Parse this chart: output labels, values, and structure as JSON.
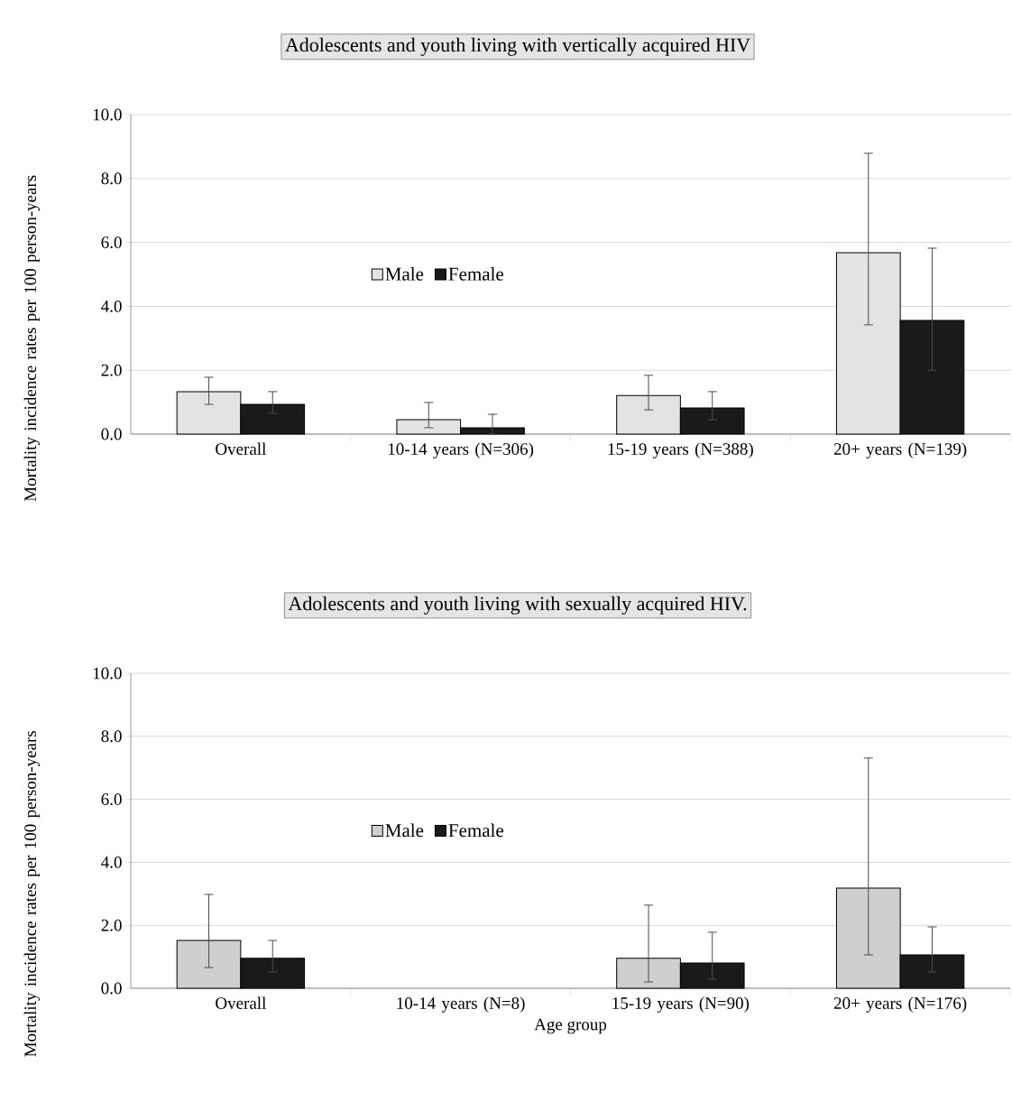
{
  "chart_data": [
    {
      "type": "bar",
      "title": "Adolescents and youth living with vertically acquired HIV",
      "ylabel": "Mortality incidence rates per 100 person-years",
      "categories": [
        "Overall",
        "10-14 years (N=306)",
        "15-19 years (N=388)",
        "20+ years (N=139)"
      ],
      "series": [
        {
          "name": "Male",
          "color": "#e3e3e3",
          "values": [
            1.33,
            0.45,
            1.21,
            5.68
          ],
          "errors": [
            [
              0.93,
              1.78
            ],
            [
              0.2,
              0.99
            ],
            [
              0.76,
              1.84
            ],
            [
              3.42,
              8.79
            ]
          ]
        },
        {
          "name": "Female",
          "color": "#1a1a1a",
          "values": [
            0.93,
            0.2,
            0.82,
            3.56
          ],
          "errors": [
            [
              0.65,
              1.33
            ],
            [
              0.0,
              0.62
            ],
            [
              0.45,
              1.33
            ],
            [
              2.0,
              5.82
            ]
          ]
        }
      ],
      "ylim": [
        0,
        10
      ],
      "yticks": [
        {
          "value": 0,
          "label": "0.0"
        },
        {
          "value": 2,
          "label": "2.0"
        },
        {
          "value": 4,
          "label": "4.0"
        },
        {
          "value": 6,
          "label": "6.0"
        },
        {
          "value": 8,
          "label": "8.0"
        },
        {
          "value": 10,
          "label": "10.0"
        }
      ],
      "grid": "y",
      "legend": "center"
    },
    {
      "type": "bar",
      "title": "Adolescents and youth living with sexually acquired HIV.",
      "ylabel": "Mortality incidence rates per 100 person-years",
      "xlabel": "Age group",
      "categories": [
        "Overall",
        "10-14 years (N=8)",
        "15-19 years (N=90)",
        "20+ years (N=176)"
      ],
      "series": [
        {
          "name": "Male",
          "color": "#d0cfd0",
          "values": [
            1.52,
            null,
            0.95,
            3.18
          ],
          "errors": [
            [
              0.66,
              2.98
            ],
            null,
            [
              0.2,
              2.64
            ],
            [
              1.06,
              7.31
            ]
          ]
        },
        {
          "name": "Female",
          "color": "#1a1a1a",
          "values": [
            0.95,
            null,
            0.8,
            1.06
          ],
          "errors": [
            [
              0.52,
              1.52
            ],
            null,
            [
              0.29,
              1.78
            ],
            [
              0.52,
              1.95
            ]
          ]
        }
      ],
      "ylim": [
        0,
        10
      ],
      "yticks": [
        {
          "value": 0,
          "label": "0.0"
        },
        {
          "value": 2,
          "label": "2.0"
        },
        {
          "value": 4,
          "label": "4.0"
        },
        {
          "value": 6,
          "label": "6.0"
        },
        {
          "value": 8,
          "label": "8.0"
        },
        {
          "value": 10,
          "label": "10.0"
        }
      ],
      "grid": "y",
      "legend": "center"
    }
  ]
}
